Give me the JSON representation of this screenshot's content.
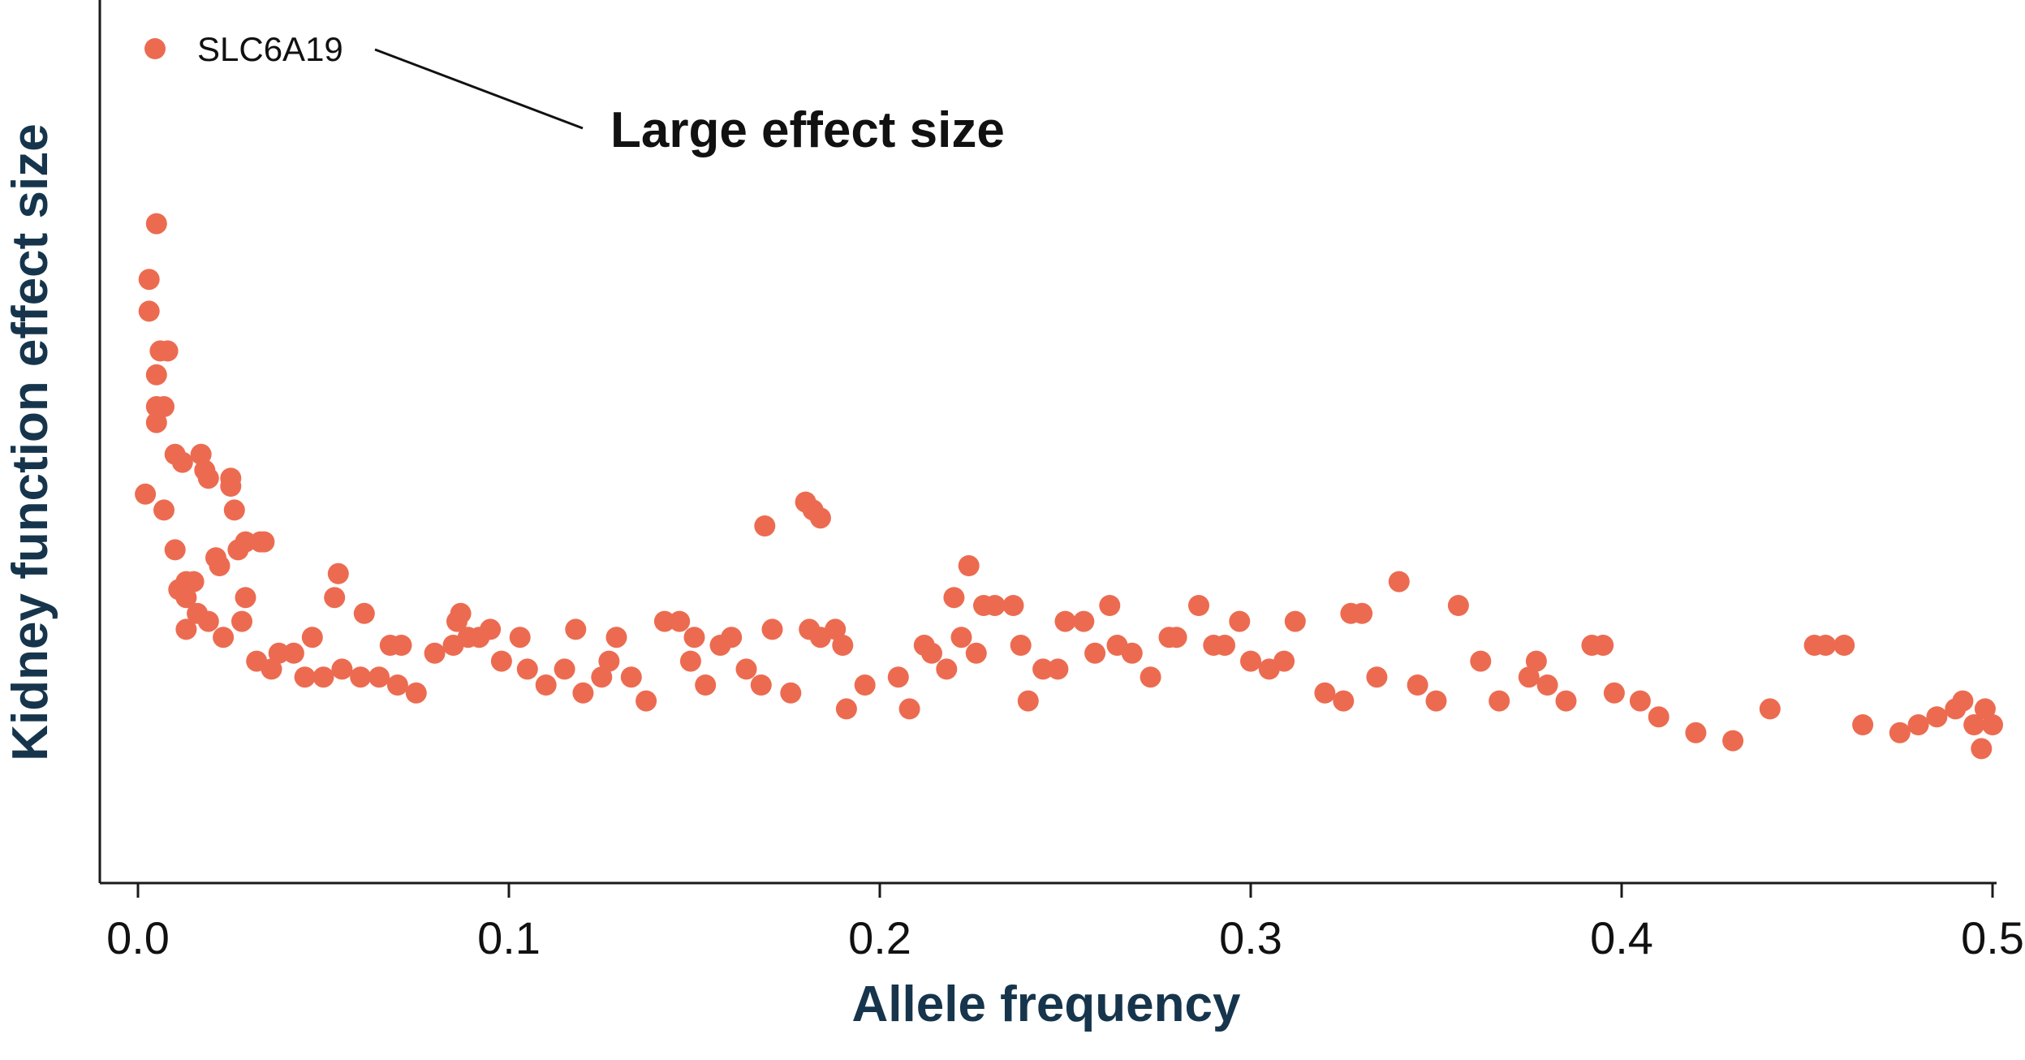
{
  "chart_data": {
    "type": "scatter",
    "title": "",
    "xlabel": "Allele frequency",
    "ylabel": "Kidney function effect size",
    "xlim": [
      0.0,
      0.5
    ],
    "ylim": [
      0.0,
      1.0
    ],
    "x_ticks": [
      "0.0",
      "0.1",
      "0.2",
      "0.3",
      "0.4",
      "0.5"
    ],
    "x_tick_values": [
      0.0,
      0.1,
      0.2,
      0.3,
      0.4,
      0.5
    ],
    "y_ticks": [],
    "grid": false,
    "legend": {
      "position": "top-left",
      "entries": [
        {
          "label": "SLC6A19",
          "color": "#ec6b50"
        }
      ]
    },
    "annotation": {
      "text": "Large effect size"
    },
    "series": [
      {
        "name": "SLC6A19",
        "color": "#ec6b50",
        "points": [
          [
            0.005,
            0.78
          ],
          [
            0.003,
            0.71
          ],
          [
            0.003,
            0.67
          ],
          [
            0.006,
            0.62
          ],
          [
            0.008,
            0.62
          ],
          [
            0.005,
            0.59
          ],
          [
            0.007,
            0.55
          ],
          [
            0.005,
            0.55
          ],
          [
            0.005,
            0.53
          ],
          [
            0.002,
            0.44
          ],
          [
            0.007,
            0.42
          ],
          [
            0.01,
            0.49
          ],
          [
            0.012,
            0.48
          ],
          [
            0.017,
            0.49
          ],
          [
            0.018,
            0.47
          ],
          [
            0.019,
            0.46
          ],
          [
            0.025,
            0.46
          ],
          [
            0.025,
            0.45
          ],
          [
            0.026,
            0.42
          ],
          [
            0.033,
            0.38
          ],
          [
            0.029,
            0.38
          ],
          [
            0.034,
            0.38
          ],
          [
            0.027,
            0.37
          ],
          [
            0.021,
            0.36
          ],
          [
            0.022,
            0.35
          ],
          [
            0.01,
            0.37
          ],
          [
            0.013,
            0.33
          ],
          [
            0.015,
            0.33
          ],
          [
            0.011,
            0.32
          ],
          [
            0.013,
            0.31
          ],
          [
            0.029,
            0.31
          ],
          [
            0.016,
            0.29
          ],
          [
            0.028,
            0.28
          ],
          [
            0.013,
            0.27
          ],
          [
            0.019,
            0.28
          ],
          [
            0.023,
            0.26
          ],
          [
            0.054,
            0.34
          ],
          [
            0.053,
            0.31
          ],
          [
            0.061,
            0.29
          ],
          [
            0.047,
            0.26
          ],
          [
            0.038,
            0.24
          ],
          [
            0.042,
            0.24
          ],
          [
            0.036,
            0.22
          ],
          [
            0.032,
            0.23
          ],
          [
            0.045,
            0.21
          ],
          [
            0.05,
            0.21
          ],
          [
            0.055,
            0.22
          ],
          [
            0.06,
            0.21
          ],
          [
            0.065,
            0.21
          ],
          [
            0.068,
            0.25
          ],
          [
            0.071,
            0.25
          ],
          [
            0.07,
            0.2
          ],
          [
            0.075,
            0.19
          ],
          [
            0.08,
            0.24
          ],
          [
            0.085,
            0.25
          ],
          [
            0.087,
            0.29
          ],
          [
            0.086,
            0.28
          ],
          [
            0.089,
            0.26
          ],
          [
            0.092,
            0.26
          ],
          [
            0.095,
            0.27
          ],
          [
            0.098,
            0.23
          ],
          [
            0.103,
            0.26
          ],
          [
            0.105,
            0.22
          ],
          [
            0.11,
            0.2
          ],
          [
            0.115,
            0.22
          ],
          [
            0.118,
            0.27
          ],
          [
            0.12,
            0.19
          ],
          [
            0.125,
            0.21
          ],
          [
            0.127,
            0.23
          ],
          [
            0.129,
            0.26
          ],
          [
            0.133,
            0.21
          ],
          [
            0.137,
            0.18
          ],
          [
            0.142,
            0.28
          ],
          [
            0.146,
            0.28
          ],
          [
            0.149,
            0.23
          ],
          [
            0.15,
            0.26
          ],
          [
            0.153,
            0.2
          ],
          [
            0.157,
            0.25
          ],
          [
            0.16,
            0.26
          ],
          [
            0.164,
            0.22
          ],
          [
            0.168,
            0.2
          ],
          [
            0.169,
            0.4
          ],
          [
            0.171,
            0.27
          ],
          [
            0.176,
            0.19
          ],
          [
            0.18,
            0.43
          ],
          [
            0.182,
            0.42
          ],
          [
            0.184,
            0.41
          ],
          [
            0.181,
            0.27
          ],
          [
            0.184,
            0.26
          ],
          [
            0.188,
            0.27
          ],
          [
            0.19,
            0.25
          ],
          [
            0.191,
            0.17
          ],
          [
            0.196,
            0.2
          ],
          [
            0.205,
            0.21
          ],
          [
            0.208,
            0.17
          ],
          [
            0.212,
            0.25
          ],
          [
            0.214,
            0.24
          ],
          [
            0.218,
            0.22
          ],
          [
            0.22,
            0.31
          ],
          [
            0.222,
            0.26
          ],
          [
            0.224,
            0.35
          ],
          [
            0.226,
            0.24
          ],
          [
            0.228,
            0.3
          ],
          [
            0.231,
            0.3
          ],
          [
            0.236,
            0.3
          ],
          [
            0.238,
            0.25
          ],
          [
            0.24,
            0.18
          ],
          [
            0.244,
            0.22
          ],
          [
            0.248,
            0.22
          ],
          [
            0.25,
            0.28
          ],
          [
            0.255,
            0.28
          ],
          [
            0.258,
            0.24
          ],
          [
            0.262,
            0.3
          ],
          [
            0.264,
            0.25
          ],
          [
            0.268,
            0.24
          ],
          [
            0.273,
            0.21
          ],
          [
            0.278,
            0.26
          ],
          [
            0.28,
            0.26
          ],
          [
            0.286,
            0.3
          ],
          [
            0.29,
            0.25
          ],
          [
            0.293,
            0.25
          ],
          [
            0.297,
            0.28
          ],
          [
            0.3,
            0.23
          ],
          [
            0.305,
            0.22
          ],
          [
            0.309,
            0.23
          ],
          [
            0.312,
            0.28
          ],
          [
            0.32,
            0.19
          ],
          [
            0.325,
            0.18
          ],
          [
            0.327,
            0.29
          ],
          [
            0.33,
            0.29
          ],
          [
            0.334,
            0.21
          ],
          [
            0.34,
            0.33
          ],
          [
            0.345,
            0.2
          ],
          [
            0.35,
            0.18
          ],
          [
            0.356,
            0.3
          ],
          [
            0.362,
            0.23
          ],
          [
            0.367,
            0.18
          ],
          [
            0.375,
            0.21
          ],
          [
            0.377,
            0.23
          ],
          [
            0.38,
            0.2
          ],
          [
            0.385,
            0.18
          ],
          [
            0.392,
            0.25
          ],
          [
            0.395,
            0.25
          ],
          [
            0.398,
            0.19
          ],
          [
            0.405,
            0.18
          ],
          [
            0.41,
            0.16
          ],
          [
            0.42,
            0.14
          ],
          [
            0.43,
            0.13
          ],
          [
            0.44,
            0.17
          ],
          [
            0.452,
            0.25
          ],
          [
            0.455,
            0.25
          ],
          [
            0.46,
            0.25
          ],
          [
            0.465,
            0.15
          ],
          [
            0.475,
            0.14
          ],
          [
            0.48,
            0.15
          ],
          [
            0.485,
            0.16
          ],
          [
            0.49,
            0.17
          ],
          [
            0.492,
            0.18
          ],
          [
            0.495,
            0.15
          ],
          [
            0.498,
            0.17
          ],
          [
            0.5,
            0.15
          ],
          [
            0.497,
            0.12
          ]
        ]
      }
    ]
  }
}
